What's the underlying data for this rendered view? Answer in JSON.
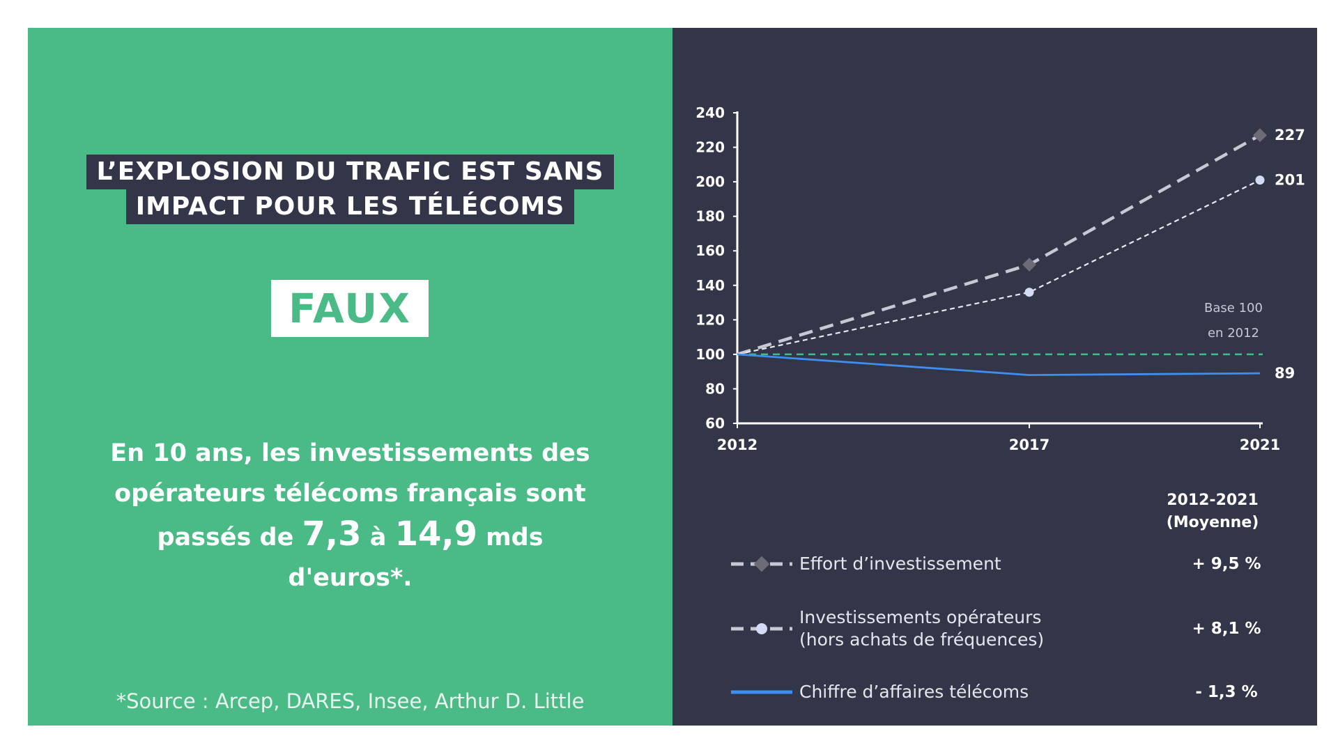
{
  "left": {
    "headline_line1": "L’EXPLOSION DU TRAFIC EST SANS",
    "headline_line2": "IMPACT POUR LES TÉLÉCOMS",
    "verdict": "FAUX",
    "body": {
      "line1": "En 10 ans, les investissements des",
      "line2": "opérateurs télécoms français sont",
      "line3_a": "passés de ",
      "line3_b": "7,3",
      "line3_c": " à ",
      "line3_d": "14,9",
      "line3_e": " mds",
      "line4": "d'euros*."
    },
    "source": "*Source : Arcep, DARES, Insee, Arthur D. Little"
  },
  "colors": {
    "green": "#4aba87",
    "navy": "#333549",
    "effort": "#c7c8d4",
    "effort_marker": "#6e6b78",
    "investissements": "#d4dcf5",
    "chiffre": "#3f8ff0",
    "base": "#3fbf87"
  },
  "chart_data": {
    "type": "line",
    "x": [
      "2012",
      "2017",
      "2021"
    ],
    "ylim": [
      60,
      240
    ],
    "yticks": [
      60,
      80,
      100,
      120,
      140,
      160,
      180,
      200,
      220,
      240
    ],
    "series": [
      {
        "name": "Effort d’investissement",
        "values": [
          100,
          152,
          227
        ],
        "end_label": "227",
        "style": "dashed-bold",
        "marker": "diamond"
      },
      {
        "name": "Investissements opérateurs (hors achats de fréquences)",
        "values": [
          100,
          136,
          201
        ],
        "end_label": "201",
        "style": "dashed-thin",
        "marker": "circle"
      },
      {
        "name": "Chiffre d’affaires télécoms",
        "values": [
          100,
          88,
          89
        ],
        "end_label": "89",
        "style": "solid",
        "marker": "none"
      }
    ],
    "reference_line": {
      "value": 100,
      "label_line1": "Base 100",
      "label_line2": "en 2012"
    },
    "legend": {
      "header_line1": "2012-2021",
      "header_line2": "(Moyenne)",
      "items": [
        {
          "label": "Effort d’investissement",
          "value": "+ 9,5 %"
        },
        {
          "label_line1": "Investissements opérateurs",
          "label_line2": "(hors achats de fréquences)",
          "value": "+ 8,1 %"
        },
        {
          "label": "Chiffre d’affaires télécoms",
          "value": "- 1,3 %"
        }
      ]
    }
  }
}
